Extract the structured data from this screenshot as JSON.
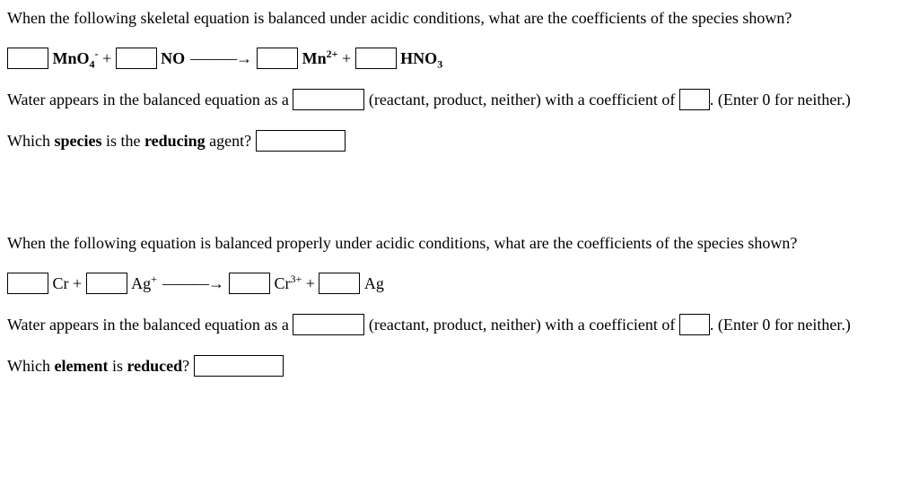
{
  "q1": {
    "prompt": "When the following skeletal equation is balanced under acidic conditions, what are the coefficients of the species shown?",
    "species": {
      "s1": "MnO",
      "s1_sub": "4",
      "s1_sup": "-",
      "plus1": " + ",
      "s2": "NO",
      "arrow": " ———→ ",
      "s3": "Mn",
      "s3_sup": "2+",
      "plus2": " + ",
      "s4": "HNO",
      "s4_sub": "3"
    },
    "water_pre": "Water appears in the balanced equation as a ",
    "water_mid": " (reactant, product, neither) with a coefficient of ",
    "water_post": ". (Enter 0 for neither.)",
    "agent_pre": "Which ",
    "agent_b1": "species",
    "agent_mid": " is the ",
    "agent_b2": "reducing",
    "agent_post": " agent? "
  },
  "q2": {
    "prompt": "When the following equation is balanced properly under acidic conditions, what are the coefficients of the species shown?",
    "species": {
      "s1": "Cr",
      "plus1": " + ",
      "s2": "Ag",
      "s2_sup": "+",
      "arrow": "———→",
      "s3": "Cr",
      "s3_sup": "3+",
      "plus2": " + ",
      "s4": "Ag"
    },
    "water_pre": "Water appears in the balanced equation as a ",
    "water_mid": " (reactant, product, neither) with a coefficient of ",
    "water_post": ". (Enter 0 for neither.)",
    "reduced_pre": "Which ",
    "reduced_b1": "element",
    "reduced_mid": " is ",
    "reduced_b2": "reduced",
    "reduced_post": "? "
  }
}
